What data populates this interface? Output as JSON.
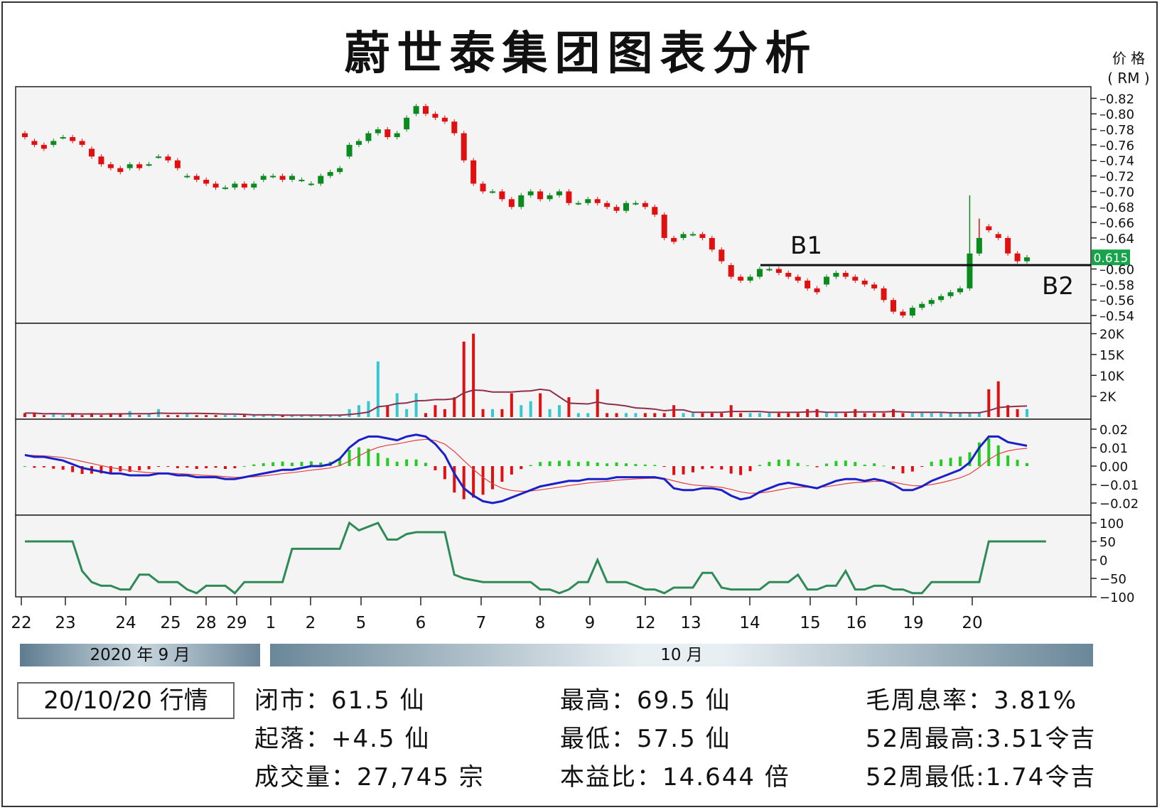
{
  "title": "蔚世泰集团图表分析",
  "price_unit": {
    "line1": "价 格",
    "line2": "( RM )"
  },
  "last_price_tag": "0.615",
  "annotations": {
    "b1": "B1",
    "b2": "B2"
  },
  "bands": {
    "sep": "2020 年 9 月",
    "oct": "10 月"
  },
  "date_box": "20/10/20 行情",
  "stats": {
    "close": "闭市：61.5 仙",
    "change": "起落：+4.5 仙",
    "volume": "成交量：27,745 宗",
    "high": "最高：69.5 仙",
    "low": "最低：57.5 仙",
    "pe": "本益比：14.644 倍",
    "yield": "毛周息率：3.81%",
    "high52": "52周最高:3.51令吉",
    "low52": "52周最低:1.74令吉"
  },
  "colors": {
    "up": "#0b8a1f",
    "down": "#e01010",
    "vol_up": "#35c8d0",
    "macd_line": "#1a1fc8",
    "signal": "#e04040",
    "cci": "#2e8b57",
    "price_tag": "#16a34a"
  },
  "chart_data": {
    "type": "candlestick",
    "x_labels": [
      "22",
      "23",
      "24",
      "25",
      "28",
      "29",
      "1",
      "2",
      "5",
      "6",
      "7",
      "8",
      "9",
      "12",
      "13",
      "14",
      "15",
      "16",
      "19",
      "20"
    ],
    "price_axis": {
      "ticks": [
        0.82,
        0.8,
        0.78,
        0.76,
        0.74,
        0.72,
        0.7,
        0.68,
        0.66,
        0.64,
        0.6,
        0.58,
        0.56,
        0.54
      ],
      "range": [
        0.53,
        0.835
      ]
    },
    "support_line": 0.605,
    "close_series": [
      0.77,
      0.76,
      0.755,
      0.765,
      0.77,
      0.765,
      0.76,
      0.745,
      0.735,
      0.73,
      0.725,
      0.735,
      0.73,
      0.735,
      0.745,
      0.74,
      0.73,
      0.72,
      0.715,
      0.71,
      0.705,
      0.705,
      0.71,
      0.705,
      0.71,
      0.72,
      0.72,
      0.715,
      0.72,
      0.715,
      0.71,
      0.72,
      0.725,
      0.73,
      0.76,
      0.765,
      0.775,
      0.78,
      0.77,
      0.775,
      0.795,
      0.81,
      0.8,
      0.795,
      0.79,
      0.775,
      0.74,
      0.71,
      0.7,
      0.7,
      0.69,
      0.68,
      0.695,
      0.7,
      0.69,
      0.695,
      0.7,
      0.685,
      0.685,
      0.69,
      0.685,
      0.68,
      0.675,
      0.685,
      0.685,
      0.68,
      0.67,
      0.64,
      0.635,
      0.645,
      0.645,
      0.64,
      0.625,
      0.61,
      0.59,
      0.585,
      0.59,
      0.6,
      0.6,
      0.595,
      0.59,
      0.585,
      0.575,
      0.57,
      0.59,
      0.595,
      0.59,
      0.585,
      0.58,
      0.575,
      0.56,
      0.545,
      0.54,
      0.55,
      0.555,
      0.56,
      0.565,
      0.57,
      0.575,
      0.62,
      0.64,
      0.65,
      0.64,
      0.62,
      0.61,
      0.615
    ],
    "open_series": [
      0.775,
      0.765,
      0.76,
      0.76,
      0.77,
      0.77,
      0.765,
      0.755,
      0.745,
      0.735,
      0.73,
      0.73,
      0.735,
      0.735,
      0.745,
      0.745,
      0.74,
      0.72,
      0.72,
      0.715,
      0.71,
      0.705,
      0.705,
      0.71,
      0.705,
      0.715,
      0.72,
      0.72,
      0.715,
      0.715,
      0.71,
      0.71,
      0.72,
      0.725,
      0.745,
      0.76,
      0.765,
      0.775,
      0.78,
      0.77,
      0.78,
      0.8,
      0.81,
      0.8,
      0.795,
      0.79,
      0.775,
      0.74,
      0.71,
      0.7,
      0.7,
      0.69,
      0.68,
      0.695,
      0.7,
      0.69,
      0.695,
      0.7,
      0.685,
      0.685,
      0.69,
      0.685,
      0.68,
      0.675,
      0.685,
      0.685,
      0.68,
      0.67,
      0.64,
      0.64,
      0.645,
      0.645,
      0.64,
      0.625,
      0.605,
      0.59,
      0.585,
      0.59,
      0.6,
      0.6,
      0.595,
      0.59,
      0.585,
      0.575,
      0.58,
      0.59,
      0.595,
      0.59,
      0.585,
      0.58,
      0.575,
      0.56,
      0.545,
      0.54,
      0.55,
      0.555,
      0.56,
      0.565,
      0.57,
      0.575,
      0.62,
      0.655,
      0.645,
      0.64,
      0.62,
      0.61
    ],
    "volume_axis": {
      "ticks": [
        "20K",
        "15K",
        "10K",
        "2K"
      ]
    },
    "macd_axis": {
      "ticks": [
        "0.02",
        "0.01",
        "0.00",
        "−0.01",
        "−0.02"
      ]
    },
    "cci_axis": {
      "ticks": [
        "100",
        "50",
        "0",
        "−50",
        "−100"
      ]
    },
    "volume_series": [
      1,
      1,
      0.5,
      1,
      0.5,
      1,
      0.5,
      1,
      0.5,
      1,
      1,
      1.5,
      0.5,
      1,
      2,
      0.5,
      0.5,
      1,
      0.5,
      0.5,
      0.5,
      0.5,
      0.5,
      0.5,
      0.5,
      0.5,
      0.5,
      0.5,
      0.5,
      0.5,
      0.5,
      0.5,
      0.5,
      0.5,
      2,
      3,
      4,
      14,
      3,
      6,
      2,
      6,
      1,
      3,
      2,
      5,
      19,
      21,
      2,
      2,
      2,
      6,
      3,
      4,
      6,
      2,
      3,
      5,
      1,
      1,
      7,
      1,
      1,
      1,
      1,
      1,
      1,
      1,
      3,
      1,
      1,
      1,
      1,
      1,
      3,
      1,
      1,
      1,
      1,
      1,
      1,
      1,
      2,
      2,
      1,
      1,
      1,
      2,
      1,
      1,
      1,
      2,
      1,
      1,
      1,
      1,
      1,
      1,
      1,
      1,
      1,
      7,
      9,
      3,
      2,
      2,
      1,
      1
    ],
    "macd_series": [
      0.006,
      0.005,
      0.005,
      0.004,
      0.003,
      0.001,
      -0.001,
      -0.002,
      -0.003,
      -0.004,
      -0.004,
      -0.005,
      -0.005,
      -0.005,
      -0.004,
      -0.004,
      -0.005,
      -0.005,
      -0.006,
      -0.006,
      -0.006,
      -0.007,
      -0.007,
      -0.006,
      -0.005,
      -0.004,
      -0.003,
      -0.002,
      -0.002,
      -0.001,
      0.0,
      0.0,
      0.001,
      0.004,
      0.01,
      0.014,
      0.016,
      0.016,
      0.015,
      0.014,
      0.016,
      0.017,
      0.016,
      0.012,
      0.006,
      -0.004,
      -0.012,
      -0.016,
      -0.019,
      -0.02,
      -0.019,
      -0.017,
      -0.015,
      -0.013,
      -0.011,
      -0.01,
      -0.009,
      -0.008,
      -0.008,
      -0.007,
      -0.007,
      -0.007,
      -0.006,
      -0.006,
      -0.006,
      -0.006,
      -0.006,
      -0.007,
      -0.012,
      -0.013,
      -0.013,
      -0.012,
      -0.012,
      -0.013,
      -0.016,
      -0.018,
      -0.017,
      -0.014,
      -0.012,
      -0.01,
      -0.009,
      -0.01,
      -0.011,
      -0.012,
      -0.01,
      -0.008,
      -0.007,
      -0.007,
      -0.008,
      -0.007,
      -0.008,
      -0.01,
      -0.013,
      -0.013,
      -0.011,
      -0.008,
      -0.006,
      -0.004,
      -0.002,
      0.002,
      0.01,
      0.016,
      0.016,
      0.013,
      0.012,
      0.011
    ],
    "cci_series": [
      50,
      50,
      50,
      50,
      50,
      50,
      -30,
      -60,
      -70,
      -70,
      -80,
      -80,
      -40,
      -40,
      -60,
      -60,
      -60,
      -80,
      -90,
      -70,
      -70,
      -70,
      -90,
      -60,
      -60,
      -60,
      -60,
      -60,
      30,
      30,
      30,
      30,
      30,
      30,
      100,
      80,
      90,
      100,
      55,
      55,
      70,
      75,
      75,
      75,
      75,
      -40,
      -50,
      -55,
      -60,
      -60,
      -60,
      -60,
      -60,
      -60,
      -80,
      -80,
      -90,
      -80,
      -60,
      -60,
      0,
      -60,
      -60,
      -60,
      -70,
      -80,
      -80,
      -90,
      -75,
      -75,
      -75,
      -35,
      -35,
      -75,
      -80,
      -80,
      -80,
      -80,
      -60,
      -60,
      -60,
      -40,
      -80,
      -80,
      -70,
      -70,
      -30,
      -80,
      -80,
      -70,
      -70,
      -80,
      -80,
      -90,
      -90,
      -60,
      -60,
      -60,
      -60,
      -60,
      -60,
      50,
      50,
      50,
      50,
      50,
      50,
      50
    ]
  }
}
